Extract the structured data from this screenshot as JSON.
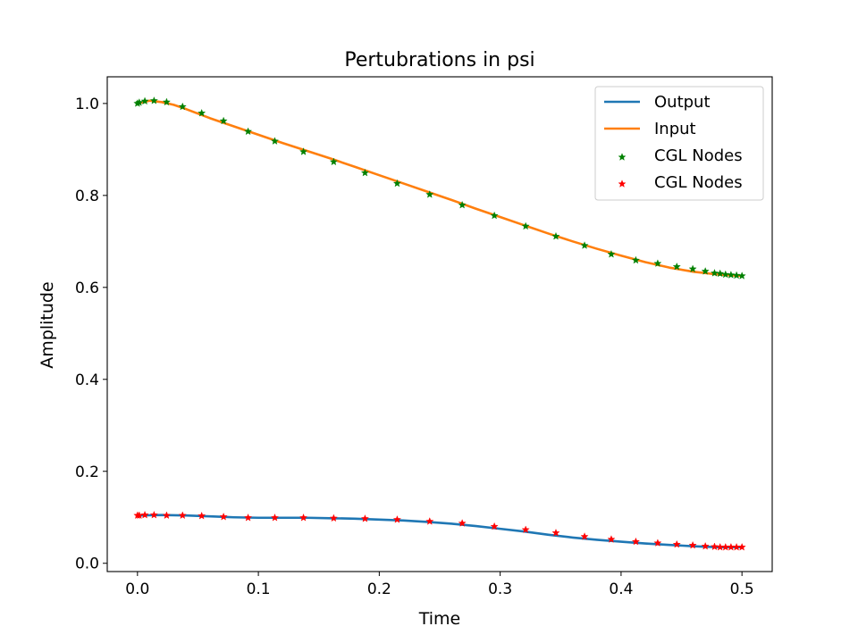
{
  "chart_data": {
    "type": "line",
    "title": "Pertubrations in psi",
    "xlabel": "Time",
    "ylabel": "Amplitude",
    "xlim": [
      -0.025,
      0.525
    ],
    "ylim": [
      -0.018,
      1.058
    ],
    "xticks": [
      0.0,
      0.1,
      0.2,
      0.3,
      0.4,
      0.5
    ],
    "xtick_labels": [
      "0.0",
      "0.1",
      "0.2",
      "0.3",
      "0.4",
      "0.5"
    ],
    "yticks": [
      0.0,
      0.2,
      0.4,
      0.6,
      0.8,
      1.0
    ],
    "ytick_labels": [
      "0.0",
      "0.2",
      "0.4",
      "0.6",
      "0.8",
      "1.0"
    ],
    "grid": false,
    "legend_position": "top-right",
    "series": [
      {
        "name": "Output",
        "kind": "line",
        "color": "#1f77b4",
        "x": [
          0.0,
          0.02,
          0.04,
          0.06,
          0.08,
          0.1,
          0.12,
          0.14,
          0.16,
          0.18,
          0.2,
          0.22,
          0.24,
          0.26,
          0.28,
          0.3,
          0.32,
          0.34,
          0.36,
          0.38,
          0.4,
          0.42,
          0.44,
          0.46,
          0.48,
          0.5
        ],
        "y": [
          0.104,
          0.105,
          0.104,
          0.102,
          0.1,
          0.099,
          0.099,
          0.099,
          0.098,
          0.097,
          0.095,
          0.093,
          0.09,
          0.086,
          0.081,
          0.075,
          0.069,
          0.062,
          0.056,
          0.051,
          0.047,
          0.043,
          0.04,
          0.037,
          0.035,
          0.035
        ]
      },
      {
        "name": "Input",
        "kind": "line",
        "color": "#ff7f0e",
        "x": [
          0.0,
          0.01,
          0.02,
          0.03,
          0.04,
          0.05,
          0.06,
          0.08,
          0.1,
          0.12,
          0.14,
          0.16,
          0.18,
          0.2,
          0.22,
          0.24,
          0.26,
          0.28,
          0.3,
          0.32,
          0.34,
          0.36,
          0.38,
          0.4,
          0.42,
          0.44,
          0.46,
          0.48,
          0.5
        ],
        "y": [
          1.0,
          1.006,
          1.003,
          0.997,
          0.988,
          0.978,
          0.968,
          0.95,
          0.932,
          0.914,
          0.897,
          0.88,
          0.862,
          0.844,
          0.826,
          0.808,
          0.79,
          0.771,
          0.753,
          0.735,
          0.717,
          0.7,
          0.684,
          0.669,
          0.655,
          0.643,
          0.634,
          0.628,
          0.625
        ]
      },
      {
        "name": "CGL Nodes",
        "kind": "scatter",
        "color": "#008000",
        "x": [
          0.0,
          0.0015,
          0.0061,
          0.0137,
          0.0241,
          0.0373,
          0.0531,
          0.0712,
          0.0915,
          0.1136,
          0.1373,
          0.1623,
          0.1882,
          0.2148,
          0.2417,
          0.2686,
          0.2952,
          0.3211,
          0.3461,
          0.3698,
          0.3919,
          0.4122,
          0.4303,
          0.4461,
          0.4593,
          0.4697,
          0.4773,
          0.4819,
          0.4864,
          0.4909,
          0.4955,
          0.5
        ],
        "y": [
          1.0,
          1.002,
          1.005,
          1.006,
          1.003,
          0.993,
          0.979,
          0.962,
          0.939,
          0.918,
          0.895,
          0.873,
          0.849,
          0.826,
          0.802,
          0.779,
          0.756,
          0.733,
          0.711,
          0.691,
          0.672,
          0.659,
          0.652,
          0.645,
          0.64,
          0.635,
          0.631,
          0.63,
          0.628,
          0.627,
          0.626,
          0.625
        ]
      },
      {
        "name": "CGL Nodes",
        "kind": "scatter",
        "color": "#ff0000",
        "x": [
          0.0,
          0.0015,
          0.0061,
          0.0137,
          0.0241,
          0.0373,
          0.0531,
          0.0712,
          0.0915,
          0.1136,
          0.1373,
          0.1623,
          0.1882,
          0.2148,
          0.2417,
          0.2686,
          0.2952,
          0.3211,
          0.3461,
          0.3698,
          0.3919,
          0.4122,
          0.4303,
          0.4461,
          0.4593,
          0.4697,
          0.4773,
          0.4819,
          0.4864,
          0.4909,
          0.4955,
          0.5
        ],
        "y": [
          0.104,
          0.104,
          0.105,
          0.105,
          0.104,
          0.104,
          0.103,
          0.101,
          0.099,
          0.099,
          0.099,
          0.098,
          0.097,
          0.095,
          0.091,
          0.087,
          0.08,
          0.073,
          0.066,
          0.058,
          0.052,
          0.047,
          0.044,
          0.041,
          0.039,
          0.037,
          0.036,
          0.035,
          0.035,
          0.035,
          0.035,
          0.035
        ]
      }
    ]
  }
}
